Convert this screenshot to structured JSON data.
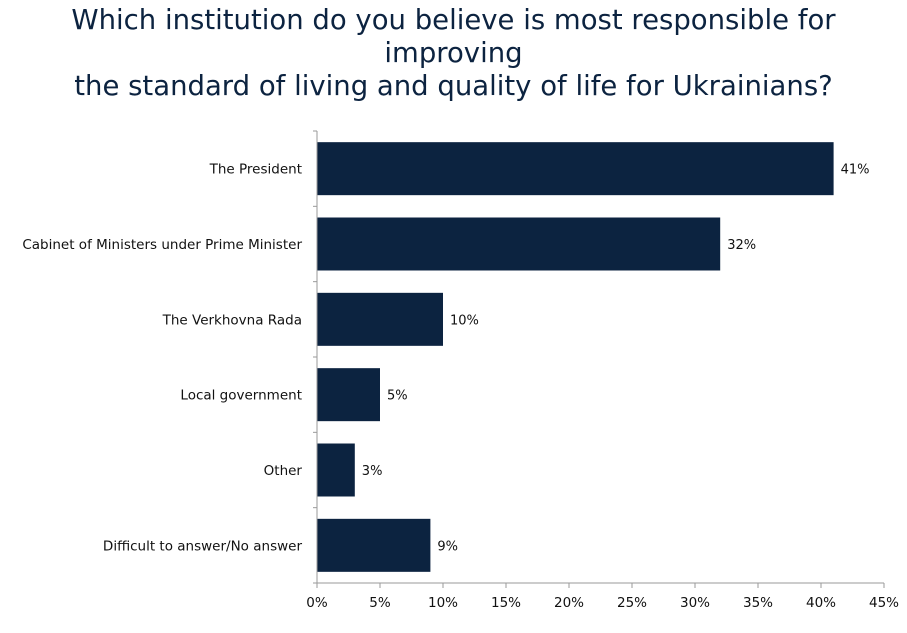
{
  "title_line1": "Which institution do you believe is most responsible for improving",
  "title_line2": "the standard of living and quality of life for Ukrainians?",
  "chart_data": {
    "type": "bar",
    "orientation": "horizontal",
    "categories": [
      "The President",
      "Cabinet of Ministers under Prime Minister",
      "The Verkhovna Rada",
      "Local government",
      "Other",
      "Difficult to answer/No answer"
    ],
    "values": [
      41,
      32,
      10,
      5,
      3,
      9
    ],
    "value_labels": [
      "41%",
      "32%",
      "10%",
      "5%",
      "3%",
      "9%"
    ],
    "xlim": [
      0,
      45
    ],
    "x_ticks": [
      "0%",
      "5%",
      "10%",
      "15%",
      "20%",
      "25%",
      "30%",
      "35%",
      "40%",
      "45%"
    ],
    "grid": false,
    "legend": "none",
    "bar_color": "#0c2340"
  }
}
